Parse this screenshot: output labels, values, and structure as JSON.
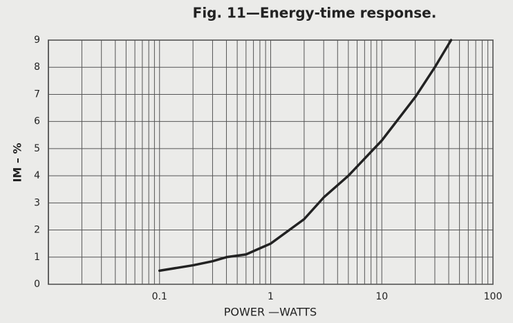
{
  "chart_data": {
    "type": "line",
    "title": "Fig. 11—Energy-time response.",
    "x_label": "POWER —WATTS",
    "y_label": "IM – %",
    "log_x": true,
    "grid": true,
    "color": "#222222",
    "x": [
      0.1,
      0.2,
      0.3,
      0.4,
      0.6,
      1,
      2,
      3,
      5,
      10,
      20,
      30,
      42
    ],
    "values": [
      0.5,
      0.7,
      0.85,
      1.0,
      1.1,
      1.5,
      2.4,
      3.2,
      4.0,
      5.3,
      6.9,
      8.0,
      9.0
    ],
    "xlim": [
      0.01,
      100
    ],
    "xticks": [
      0.1,
      1,
      10,
      100
    ],
    "ylim": [
      0,
      9
    ],
    "yticks": [
      0,
      1,
      2,
      3,
      4,
      5,
      6,
      7,
      8,
      9
    ]
  }
}
